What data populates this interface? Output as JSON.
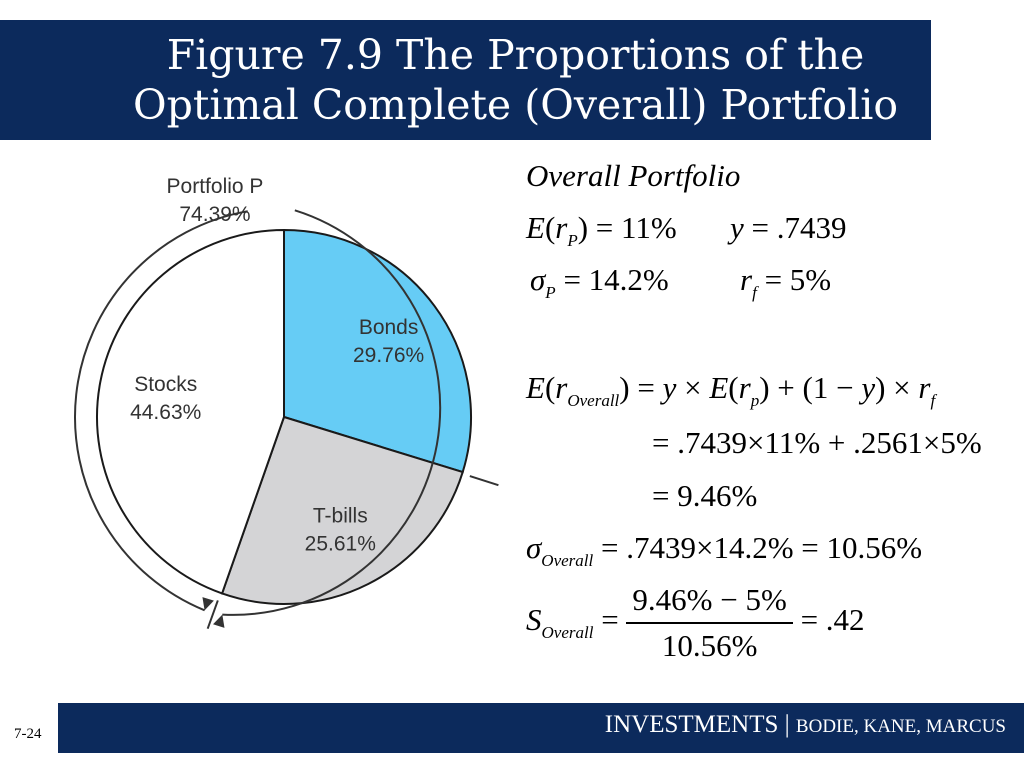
{
  "title": "Figure 7.9 The Proportions of the Optimal Complete (Overall) Portfolio",
  "footer": {
    "main": "INVESTMENTS | ",
    "authors": "BODIE, KANE, MARCUS"
  },
  "page_number": "7-24",
  "equations": {
    "heading": "Overall Portfolio",
    "line1a": "E(rP) = 11%",
    "line1b": "y = .7439",
    "line2a": "σP = 14.2%",
    "line2b": "rf = 5%",
    "formula": "E(rOverall) = y × E(rp) + (1 − y) × rf",
    "calc1": "= .7439×11% + .2561×5%",
    "calc2": "= 9.46%",
    "sigma_overall": ".7439×14.2% = 10.56%",
    "sharpe_num": "9.46% − 5%",
    "sharpe_den": "10.56%",
    "sharpe_result": "= .42"
  },
  "chart_data": {
    "type": "pie",
    "slices": [
      {
        "label": "Bonds",
        "value": 29.76,
        "display": "29.76%",
        "color": "#66ccf5"
      },
      {
        "label": "T-bills",
        "value": 25.61,
        "display": "25.61%",
        "color": "#d4d4d6"
      },
      {
        "label": "Stocks",
        "value": 44.63,
        "display": "44.63%",
        "color": "#ffffff"
      }
    ],
    "group_annotation": {
      "label": "Portfolio P",
      "value": 74.39,
      "display": "74.39%"
    },
    "start_angle_deg": 0,
    "direction": "clockwise"
  }
}
